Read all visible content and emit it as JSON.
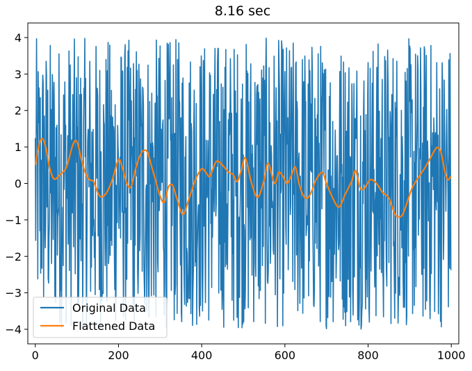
{
  "chart_data": {
    "type": "line",
    "title": "8.16 sec",
    "xlabel": "",
    "ylabel": "",
    "xlim": [
      -18,
      1018
    ],
    "ylim": [
      -4.4,
      4.4
    ],
    "xticks": [
      0,
      200,
      400,
      600,
      800,
      1000
    ],
    "yticks": [
      -4,
      -3,
      -2,
      -1,
      0,
      1,
      2,
      3,
      4
    ],
    "grid": false,
    "legend_position": "lower-left",
    "series": [
      {
        "name": "Original Data",
        "color": "#1f77b4",
        "style": "dense random oscillation between about -4 and 4 at every integer x",
        "x_start": 0,
        "x_end": 999,
        "min": -4.0,
        "max": 4.0
      },
      {
        "name": "Flattened Data",
        "color": "#ff7f0e",
        "x": [
          0,
          10,
          18,
          26,
          34,
          45,
          60,
          75,
          90,
          100,
          110,
          120,
          130,
          140,
          155,
          170,
          185,
          200,
          210,
          220,
          230,
          240,
          250,
          260,
          270,
          280,
          290,
          300,
          310,
          320,
          330,
          340,
          355,
          370,
          385,
          400,
          410,
          420,
          435,
          450,
          465,
          475,
          485,
          495,
          505,
          520,
          535,
          550,
          560,
          575,
          585,
          595,
          605,
          615,
          625,
          635,
          645,
          655,
          665,
          675,
          690,
          700,
          715,
          730,
          745,
          760,
          770,
          780,
          790,
          805,
          820,
          835,
          850,
          865,
          880,
          890,
          905,
          920,
          935,
          950,
          965,
          975,
          985,
          992,
          999
        ],
        "values": [
          0.5,
          1.1,
          1.22,
          0.95,
          0.45,
          0.12,
          0.25,
          0.45,
          1.05,
          1.15,
          0.7,
          0.3,
          0.1,
          0.05,
          -0.35,
          -0.28,
          0.1,
          0.65,
          0.4,
          0.0,
          -0.1,
          0.35,
          0.72,
          0.9,
          0.85,
          0.45,
          0.05,
          -0.35,
          -0.52,
          -0.1,
          -0.05,
          -0.4,
          -0.85,
          -0.4,
          0.1,
          0.4,
          0.3,
          0.2,
          0.6,
          0.5,
          0.3,
          0.25,
          0.05,
          0.35,
          0.7,
          0.0,
          -0.38,
          0.1,
          0.55,
          0.0,
          0.3,
          0.2,
          0.0,
          0.2,
          0.45,
          -0.05,
          -0.35,
          -0.4,
          -0.2,
          0.1,
          0.3,
          0.0,
          -0.4,
          -0.65,
          -0.3,
          0.05,
          0.35,
          -0.1,
          -0.15,
          0.1,
          0.0,
          -0.25,
          -0.4,
          -0.85,
          -0.9,
          -0.65,
          -0.15,
          0.15,
          0.4,
          0.7,
          0.98,
          0.85,
          0.3,
          0.1,
          0.2
        ]
      }
    ]
  }
}
